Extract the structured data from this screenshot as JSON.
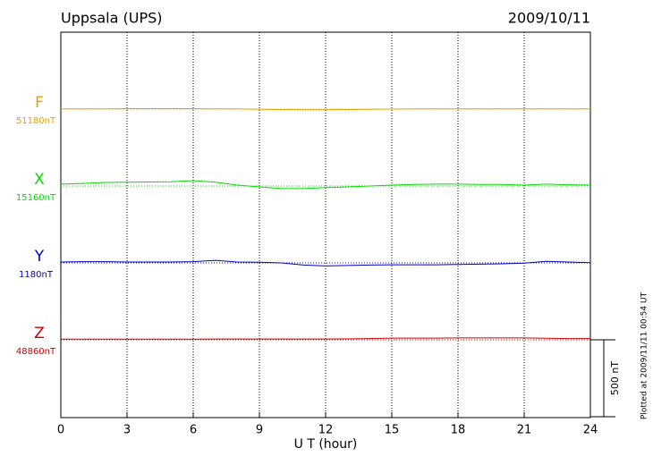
{
  "chart_data": {
    "type": "magnetogram",
    "title": "Uppsala (UPS)",
    "date": "2009/10/11",
    "x_label": "U T (hour)",
    "note": "Plotted at 2009/11/11 00:54 UT",
    "xlim": [
      0,
      24
    ],
    "xticks": [
      0,
      3,
      6,
      9,
      12,
      15,
      18,
      21,
      24
    ],
    "grid": true,
    "scale_bar": {
      "value": 500,
      "label": "500 nT"
    },
    "x": [
      0,
      1,
      2,
      3,
      4,
      5,
      6,
      7,
      8,
      9,
      10,
      11,
      12,
      13,
      14,
      15,
      16,
      17,
      18,
      19,
      20,
      21,
      22,
      23,
      24
    ],
    "series": [
      {
        "name": "F",
        "color": "#e8a000",
        "baseline": {
          "value": 51180,
          "label": "51180nT"
        },
        "values": [
          51182,
          51182,
          51182,
          51183,
          51183,
          51183,
          51183,
          51182,
          51181,
          51179,
          51177,
          51176,
          51176,
          51177,
          51178,
          51180,
          51181,
          51181,
          51182,
          51182,
          51182,
          51182,
          51182,
          51182,
          51182
        ]
      },
      {
        "name": "X",
        "color": "#00dd00",
        "baseline": {
          "value": 15160,
          "label": "15160nT"
        },
        "values": [
          15172,
          15177,
          15183,
          15185,
          15186,
          15188,
          15195,
          15185,
          15166,
          15154,
          15143,
          15143,
          15150,
          15154,
          15160,
          15166,
          15170,
          15172,
          15172,
          15170,
          15170,
          15166,
          15172,
          15168,
          15166
        ]
      },
      {
        "name": "Y",
        "color": "#0000c0",
        "baseline": {
          "value": 1180,
          "label": "1180nT"
        },
        "values": [
          1186,
          1188,
          1188,
          1186,
          1186,
          1186,
          1188,
          1197,
          1186,
          1184,
          1180,
          1166,
          1160,
          1163,
          1166,
          1168,
          1168,
          1168,
          1170,
          1172,
          1174,
          1178,
          1190,
          1186,
          1182
        ]
      },
      {
        "name": "Z",
        "color": "#d00000",
        "baseline": {
          "value": 48860,
          "label": "48860nT"
        },
        "values": [
          48864,
          48864,
          48864,
          48864,
          48864,
          48864,
          48864,
          48865,
          48865,
          48865,
          48865,
          48865,
          48865,
          48866,
          48868,
          48871,
          48871,
          48871,
          48872,
          48872,
          48872,
          48872,
          48870,
          48868,
          48868
        ]
      }
    ]
  }
}
